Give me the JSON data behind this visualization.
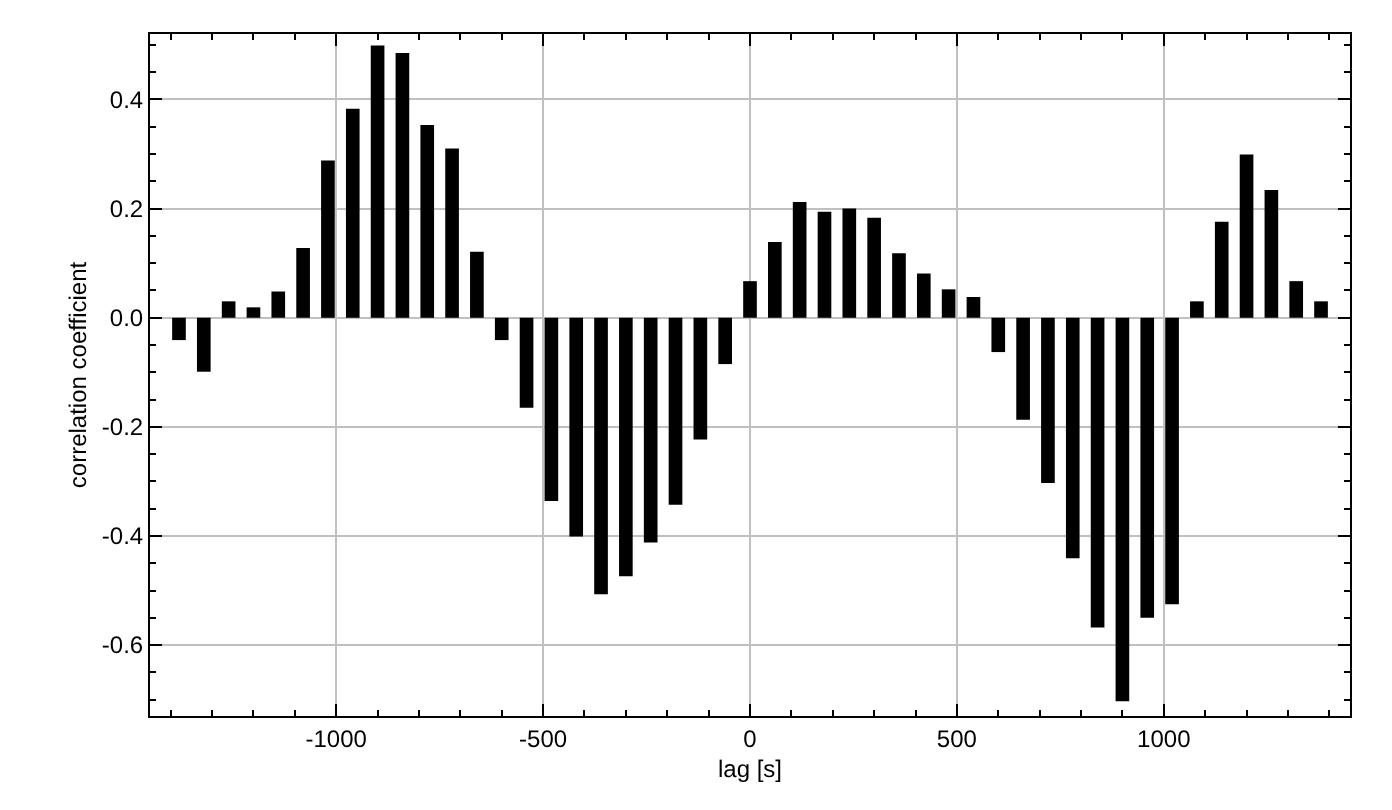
{
  "chart_data": {
    "type": "bar",
    "xlabel": "lag [s]",
    "ylabel": "correlation coefficient",
    "x": [
      -1380,
      -1320,
      -1260,
      -1200,
      -1140,
      -1080,
      -1020,
      -960,
      -900,
      -840,
      -780,
      -720,
      -660,
      -600,
      -540,
      -480,
      -420,
      -360,
      -300,
      -240,
      -180,
      -120,
      -60,
      0,
      60,
      120,
      180,
      240,
      300,
      360,
      420,
      480,
      540,
      600,
      660,
      720,
      780,
      840,
      900,
      960,
      1020,
      1080,
      1140,
      1200,
      1260,
      1320,
      1380
    ],
    "series": [
      {
        "color": "#000000",
        "values": [
          -0.041,
          -0.099,
          0.03,
          0.019,
          0.048,
          0.128,
          0.288,
          0.383,
          0.499,
          0.485,
          0.353,
          0.31,
          0.121,
          -0.041,
          -0.165,
          -0.336,
          -0.401,
          -0.507,
          -0.474,
          -0.412,
          -0.343,
          -0.223,
          -0.085,
          0.067,
          0.139,
          0.212,
          0.194,
          0.2,
          0.183,
          0.118,
          0.081,
          0.052,
          0.038,
          -0.063,
          -0.187,
          -0.303,
          -0.441,
          -0.568,
          -0.703,
          -0.55,
          -0.525,
          0.03,
          0.176,
          0.299,
          0.234,
          0.067,
          0.03
        ]
      }
    ],
    "xlim": [
      -1450,
      1450
    ],
    "xticks": [
      {
        "value": -1400,
        "label": null
      },
      {
        "value": -1300,
        "label": null
      },
      {
        "value": -1200,
        "label": null
      },
      {
        "value": -1100,
        "label": null
      },
      {
        "value": -1000,
        "label": "-1000"
      },
      {
        "value": -900,
        "label": null
      },
      {
        "value": -800,
        "label": null
      },
      {
        "value": -700,
        "label": null
      },
      {
        "value": -600,
        "label": null
      },
      {
        "value": -500,
        "label": "-500"
      },
      {
        "value": -400,
        "label": null
      },
      {
        "value": -300,
        "label": null
      },
      {
        "value": -200,
        "label": null
      },
      {
        "value": -100,
        "label": null
      },
      0,
      {
        "value": 100,
        "label": null
      },
      {
        "value": 200,
        "label": null
      },
      {
        "value": 300,
        "label": null
      },
      {
        "value": 400,
        "label": null
      },
      500,
      {
        "value": 600,
        "label": null
      },
      {
        "value": 700,
        "label": null
      },
      {
        "value": 800,
        "label": null
      },
      {
        "value": 900,
        "label": null
      },
      1000,
      {
        "value": 1100,
        "label": null
      },
      {
        "value": 1200,
        "label": null
      },
      {
        "value": 1300,
        "label": null
      },
      {
        "value": 1400,
        "label": null
      }
    ],
    "ylim": [
      -0.73,
      0.52
    ],
    "yticks": [
      {
        "value": -0.7,
        "label": null
      },
      {
        "value": -0.65,
        "label": null
      },
      -0.6,
      {
        "value": -0.55,
        "label": null
      },
      {
        "value": -0.5,
        "label": null
      },
      {
        "value": -0.45,
        "label": null
      },
      -0.4,
      {
        "value": -0.35,
        "label": null
      },
      {
        "value": -0.3,
        "label": null
      },
      {
        "value": -0.25,
        "label": null
      },
      -0.2,
      {
        "value": -0.15,
        "label": null
      },
      {
        "value": -0.1,
        "label": null
      },
      {
        "value": -0.05,
        "label": null
      },
      {
        "value": 0,
        "label": "0.0"
      },
      {
        "value": 0.05,
        "label": null
      },
      {
        "value": 0.1,
        "label": null
      },
      {
        "value": 0.15,
        "label": null
      },
      0.2,
      {
        "value": 0.25,
        "label": null
      },
      {
        "value": 0.3,
        "label": null
      },
      {
        "value": 0.35,
        "label": null
      },
      0.4,
      {
        "value": 0.45,
        "label": null
      },
      {
        "value": 0.5,
        "label": null
      }
    ],
    "grid": true
  }
}
